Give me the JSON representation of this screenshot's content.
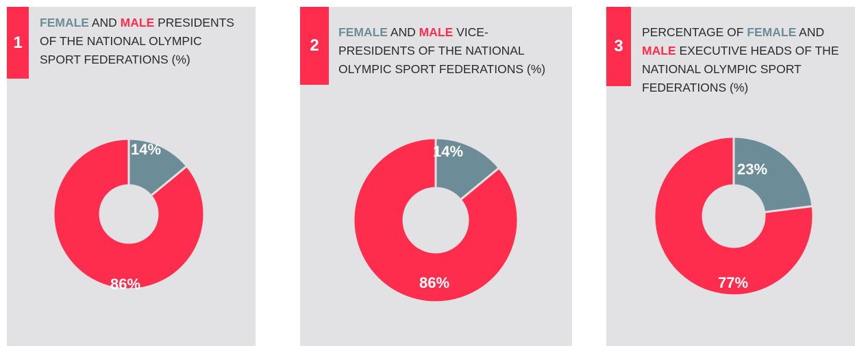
{
  "colors": {
    "female": "#6c8d97",
    "male": "#ff2d4d",
    "panel": "#e2e2e4"
  },
  "charts": [
    {
      "number": "1",
      "title_pre": "",
      "title_female": "FEMALE",
      "title_and": " AND ",
      "title_male": "MALE",
      "title_post": " PRESIDENTS OF THE NATIONAL OLYMPIC SPORT FEDERATIONS (%)",
      "female_label": "14%",
      "male_label": "86%"
    },
    {
      "number": "2",
      "title_pre": "",
      "title_female": "FEMALE",
      "title_and": " AND ",
      "title_male": "MALE",
      "title_post": " VICE-PRESIDENTS OF THE NATIONAL OLYMPIC SPORT FEDERATIONS (%)",
      "female_label": "14%",
      "male_label": "86%"
    },
    {
      "number": "3",
      "title_pre": "PERCENTAGE OF ",
      "title_female": "FEMALE",
      "title_and": " AND ",
      "title_male": "MALE",
      "title_post": " EXECUTIVE HEADS OF THE NATIONAL OLYMPIC SPORT FEDERATIONS (%)",
      "female_label": "23%",
      "male_label": "77%"
    }
  ],
  "chart_data": [
    {
      "type": "pie",
      "categories": [
        "FEMALE",
        "MALE"
      ],
      "values": [
        14,
        86
      ],
      "colors": [
        "#6c8d97",
        "#ff2d4d"
      ]
    },
    {
      "type": "pie",
      "categories": [
        "FEMALE",
        "MALE"
      ],
      "values": [
        14,
        86
      ],
      "colors": [
        "#6c8d97",
        "#ff2d4d"
      ]
    },
    {
      "type": "pie",
      "categories": [
        "FEMALE",
        "MALE"
      ],
      "values": [
        23,
        77
      ],
      "colors": [
        "#6c8d97",
        "#ff2d4d"
      ]
    }
  ]
}
